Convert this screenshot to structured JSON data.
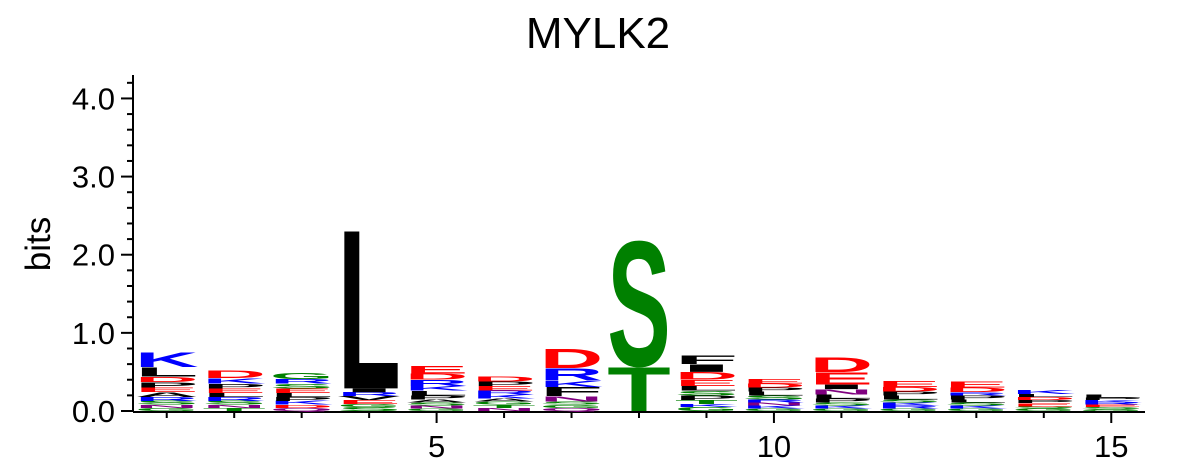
{
  "chart_data": {
    "type": "sequence-logo",
    "title": "MYLK2",
    "ylabel": "bits",
    "xlabel": "",
    "ylim": [
      0,
      4.3
    ],
    "yticks": [
      {
        "value": 0,
        "label": "0.0"
      },
      {
        "value": 1,
        "label": "1.0"
      },
      {
        "value": 2,
        "label": "2.0"
      },
      {
        "value": 3,
        "label": "3.0"
      },
      {
        "value": 4,
        "label": "4.0"
      }
    ],
    "xticks": [
      {
        "value": 5,
        "label": "5"
      },
      {
        "value": 10,
        "label": "10"
      },
      {
        "value": 15,
        "label": "15"
      }
    ],
    "xlim": [
      0.5,
      15.5
    ],
    "colors": {
      "acidic": "#ff0000",
      "basic": "#0000ff",
      "hydrophobic": "#000000",
      "polar": "#008000",
      "amide": "#800080"
    },
    "positions": [
      {
        "pos": 1,
        "letters": [
          {
            "aa": "G",
            "h": 0.04
          },
          {
            "aa": "N",
            "h": 0.04
          },
          {
            "aa": "S",
            "h": 0.05
          },
          {
            "aa": "R",
            "h": 0.05
          },
          {
            "aa": "A",
            "h": 0.06
          },
          {
            "aa": "E",
            "h": 0.06
          },
          {
            "aa": "P",
            "h": 0.07
          },
          {
            "aa": "D",
            "h": 0.07
          },
          {
            "aa": "L",
            "h": 0.12
          },
          {
            "aa": "K",
            "h": 0.2
          }
        ]
      },
      {
        "pos": 2,
        "letters": [
          {
            "aa": "T",
            "h": 0.04
          },
          {
            "aa": "N",
            "h": 0.04
          },
          {
            "aa": "S",
            "h": 0.05
          },
          {
            "aa": "R",
            "h": 0.05
          },
          {
            "aa": "L",
            "h": 0.05
          },
          {
            "aa": "E",
            "h": 0.06
          },
          {
            "aa": "P",
            "h": 0.06
          },
          {
            "aa": "K",
            "h": 0.07
          },
          {
            "aa": "D",
            "h": 0.1
          }
        ]
      },
      {
        "pos": 3,
        "letters": [
          {
            "aa": "Q",
            "h": 0.04
          },
          {
            "aa": "D",
            "h": 0.04
          },
          {
            "aa": "K",
            "h": 0.05
          },
          {
            "aa": "P",
            "h": 0.05
          },
          {
            "aa": "L",
            "h": 0.05
          },
          {
            "aa": "E",
            "h": 0.06
          },
          {
            "aa": "S",
            "h": 0.06
          },
          {
            "aa": "R",
            "h": 0.06
          },
          {
            "aa": "G",
            "h": 0.08
          }
        ]
      },
      {
        "pos": 4,
        "letters": [
          {
            "aa": "S",
            "h": 0.05
          },
          {
            "aa": "G",
            "h": 0.04
          },
          {
            "aa": "E",
            "h": 0.05
          },
          {
            "aa": "V",
            "h": 0.05
          },
          {
            "aa": "R",
            "h": 0.05
          },
          {
            "aa": "I",
            "h": 0.05
          },
          {
            "aa": "L",
            "h": 2.1
          }
        ]
      },
      {
        "pos": 5,
        "letters": [
          {
            "aa": "G",
            "h": 0.03
          },
          {
            "aa": "N",
            "h": 0.04
          },
          {
            "aa": "S",
            "h": 0.04
          },
          {
            "aa": "A",
            "h": 0.04
          },
          {
            "aa": "P",
            "h": 0.05
          },
          {
            "aa": "L",
            "h": 0.06
          },
          {
            "aa": "K",
            "h": 0.06
          },
          {
            "aa": "R",
            "h": 0.08
          },
          {
            "aa": "D",
            "h": 0.08
          },
          {
            "aa": "E",
            "h": 0.1
          }
        ]
      },
      {
        "pos": 6,
        "letters": [
          {
            "aa": "N",
            "h": 0.04
          },
          {
            "aa": "T",
            "h": 0.04
          },
          {
            "aa": "G",
            "h": 0.04
          },
          {
            "aa": "A",
            "h": 0.04
          },
          {
            "aa": "K",
            "h": 0.05
          },
          {
            "aa": "R",
            "h": 0.05
          },
          {
            "aa": "E",
            "h": 0.06
          },
          {
            "aa": "P",
            "h": 0.06
          },
          {
            "aa": "D",
            "h": 0.07
          }
        ]
      },
      {
        "pos": 7,
        "letters": [
          {
            "aa": "Q",
            "h": 0.04
          },
          {
            "aa": "G",
            "h": 0.04
          },
          {
            "aa": "S",
            "h": 0.04
          },
          {
            "aa": "N",
            "h": 0.07
          },
          {
            "aa": "F",
            "h": 0.12
          },
          {
            "aa": "K",
            "h": 0.08
          },
          {
            "aa": "R",
            "h": 0.16
          },
          {
            "aa": "D",
            "h": 0.26
          }
        ]
      },
      {
        "pos": 8,
        "letters": [
          {
            "aa": "T",
            "h": 0.58
          },
          {
            "aa": "S",
            "h": 1.65
          }
        ]
      },
      {
        "pos": 9,
        "letters": [
          {
            "aa": "G",
            "h": 0.05
          },
          {
            "aa": "K",
            "h": 0.04
          },
          {
            "aa": "T",
            "h": 0.05
          },
          {
            "aa": "P",
            "h": 0.06
          },
          {
            "aa": "S",
            "h": 0.06
          },
          {
            "aa": "L",
            "h": 0.06
          },
          {
            "aa": "E",
            "h": 0.08
          },
          {
            "aa": "D",
            "h": 0.1
          },
          {
            "aa": "I",
            "h": 0.1
          },
          {
            "aa": "F",
            "h": 0.11
          }
        ]
      },
      {
        "pos": 10,
        "letters": [
          {
            "aa": "G",
            "h": 0.03
          },
          {
            "aa": "K",
            "h": 0.04
          },
          {
            "aa": "N",
            "h": 0.04
          },
          {
            "aa": "R",
            "h": 0.04
          },
          {
            "aa": "S",
            "h": 0.05
          },
          {
            "aa": "L",
            "h": 0.05
          },
          {
            "aa": "P",
            "h": 0.05
          },
          {
            "aa": "D",
            "h": 0.05
          },
          {
            "aa": "E",
            "h": 0.06
          }
        ]
      },
      {
        "pos": 11,
        "letters": [
          {
            "aa": "G",
            "h": 0.03
          },
          {
            "aa": "K",
            "h": 0.04
          },
          {
            "aa": "S",
            "h": 0.04
          },
          {
            "aa": "P",
            "h": 0.05
          },
          {
            "aa": "L",
            "h": 0.05
          },
          {
            "aa": "N",
            "h": 0.07
          },
          {
            "aa": "I",
            "h": 0.06
          },
          {
            "aa": "E",
            "h": 0.16
          },
          {
            "aa": "D",
            "h": 0.2
          }
        ]
      },
      {
        "pos": 12,
        "letters": [
          {
            "aa": "G",
            "h": 0.03
          },
          {
            "aa": "R",
            "h": 0.04
          },
          {
            "aa": "K",
            "h": 0.04
          },
          {
            "aa": "S",
            "h": 0.04
          },
          {
            "aa": "L",
            "h": 0.05
          },
          {
            "aa": "P",
            "h": 0.05
          },
          {
            "aa": "D",
            "h": 0.06
          },
          {
            "aa": "E",
            "h": 0.08
          }
        ]
      },
      {
        "pos": 13,
        "letters": [
          {
            "aa": "G",
            "h": 0.03
          },
          {
            "aa": "K",
            "h": 0.04
          },
          {
            "aa": "S",
            "h": 0.04
          },
          {
            "aa": "L",
            "h": 0.04
          },
          {
            "aa": "P",
            "h": 0.05
          },
          {
            "aa": "R",
            "h": 0.04
          },
          {
            "aa": "D",
            "h": 0.06
          },
          {
            "aa": "E",
            "h": 0.08
          }
        ]
      },
      {
        "pos": 14,
        "letters": [
          {
            "aa": "G",
            "h": 0.03
          },
          {
            "aa": "S",
            "h": 0.03
          },
          {
            "aa": "E",
            "h": 0.04
          },
          {
            "aa": "P",
            "h": 0.04
          },
          {
            "aa": "D",
            "h": 0.04
          },
          {
            "aa": "L",
            "h": 0.04
          },
          {
            "aa": "K",
            "h": 0.05
          }
        ]
      },
      {
        "pos": 15,
        "letters": [
          {
            "aa": "G",
            "h": 0.02
          },
          {
            "aa": "S",
            "h": 0.03
          },
          {
            "aa": "E",
            "h": 0.03
          },
          {
            "aa": "R",
            "h": 0.03
          },
          {
            "aa": "K",
            "h": 0.03
          },
          {
            "aa": "P",
            "h": 0.03
          },
          {
            "aa": "L",
            "h": 0.04
          }
        ]
      }
    ]
  }
}
